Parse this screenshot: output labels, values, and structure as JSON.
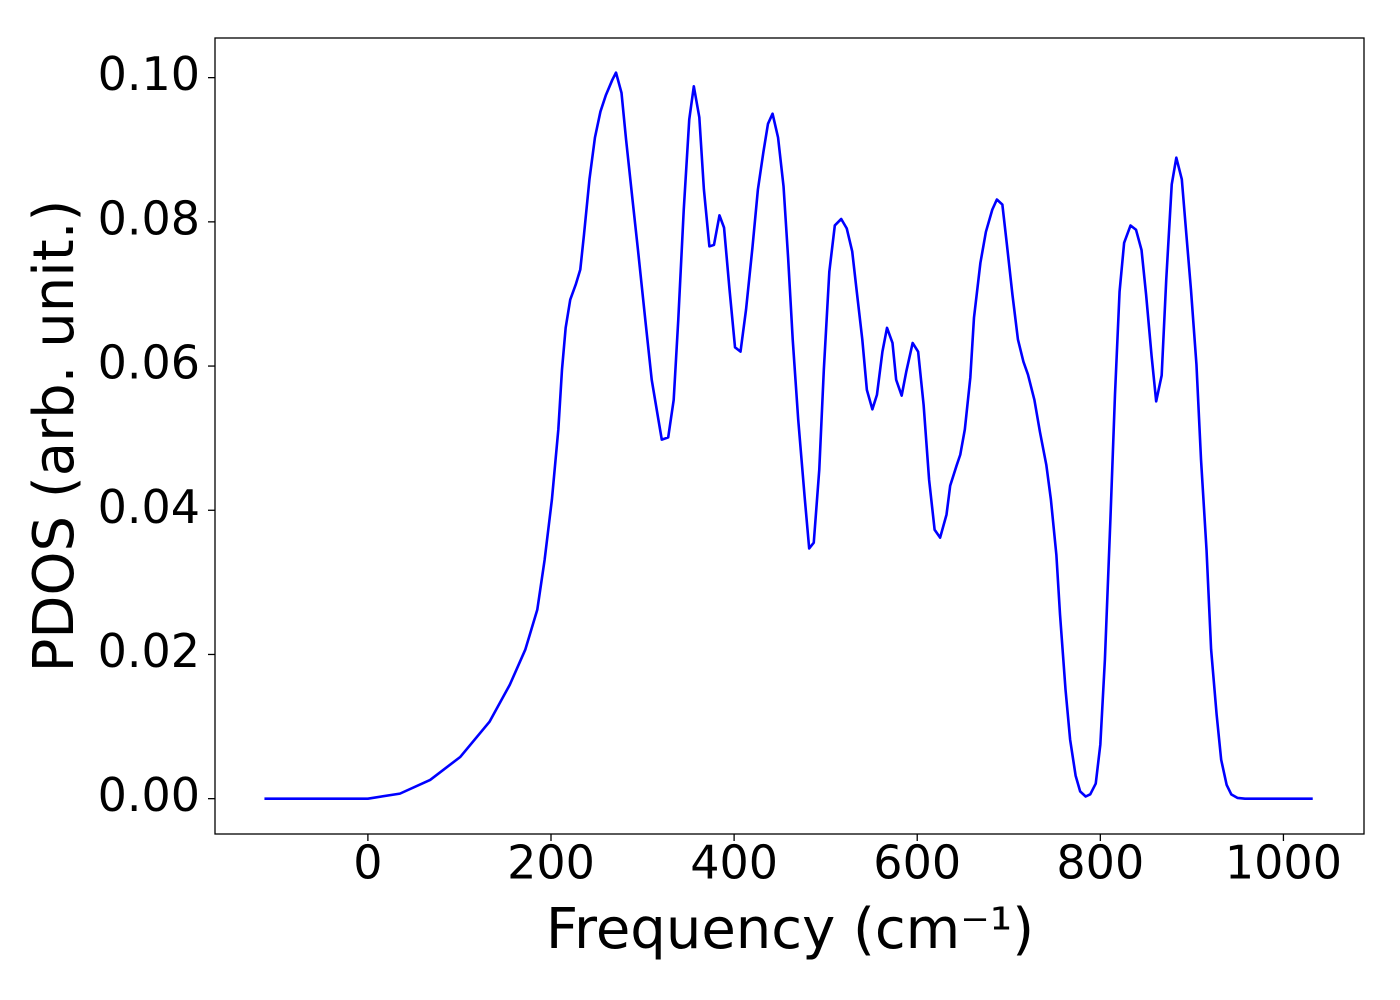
{
  "chart_data": {
    "type": "line",
    "xlabel": "Frequency (cm⁻¹)",
    "ylabel": "PDOS (arb. unit.)",
    "xlim": [
      -167,
      1088
    ],
    "ylim": [
      -0.0049,
      0.1055
    ],
    "xticks": [
      0,
      200,
      400,
      600,
      800,
      1000
    ],
    "yticks": [
      {
        "value": 0,
        "label": "0.00"
      },
      {
        "value": 0.02,
        "label": "0.02"
      },
      {
        "value": 0.04,
        "label": "0.04"
      },
      {
        "value": 0.06,
        "label": "0.06"
      },
      {
        "value": 0.08,
        "label": "0.08"
      },
      {
        "value": 0.1,
        "label": "0.10"
      }
    ],
    "grid": false,
    "x": [
      -113,
      0,
      35,
      68,
      101,
      133,
      155,
      172,
      185,
      193,
      201,
      208,
      212,
      216,
      221,
      227,
      232,
      236,
      242,
      248,
      254,
      260,
      267,
      271,
      277,
      282,
      289,
      295,
      303,
      310,
      317,
      321,
      328,
      334,
      339,
      345,
      351,
      356,
      362,
      367,
      373,
      378,
      384,
      389,
      395,
      401,
      407,
      413,
      420,
      426,
      432,
      437,
      442,
      448,
      454,
      459,
      464,
      470,
      477,
      482,
      487,
      493,
      498,
      504,
      510,
      517,
      523,
      529,
      534,
      540,
      545,
      551,
      556,
      562,
      567,
      573,
      577,
      583,
      588,
      595,
      601,
      607,
      613,
      619,
      625,
      632,
      636,
      643,
      647,
      652,
      658,
      662,
      669,
      675,
      682,
      687,
      693,
      698,
      704,
      710,
      716,
      721,
      728,
      734,
      741,
      746,
      752,
      756,
      762,
      767,
      773,
      778,
      784,
      789,
      795,
      800,
      805,
      811,
      816,
      821,
      826,
      833,
      839,
      845,
      850,
      856,
      861,
      867,
      872,
      878,
      883,
      889,
      894,
      899,
      905,
      910,
      916,
      921,
      927,
      932,
      938,
      943,
      950,
      958,
      1032
    ],
    "series": [
      {
        "color": "#0000ff",
        "values": [
          0,
          0,
          0.0007,
          0.0026,
          0.0058,
          0.0107,
          0.0158,
          0.0207,
          0.0262,
          0.0331,
          0.0415,
          0.0512,
          0.0595,
          0.0653,
          0.0692,
          0.0713,
          0.0734,
          0.0782,
          0.0859,
          0.0917,
          0.0953,
          0.0976,
          0.0997,
          0.1007,
          0.0979,
          0.0914,
          0.0831,
          0.0761,
          0.0664,
          0.0581,
          0.0528,
          0.0498,
          0.0501,
          0.0553,
          0.0664,
          0.0817,
          0.0942,
          0.0988,
          0.0945,
          0.0845,
          0.0766,
          0.0768,
          0.0809,
          0.0792,
          0.0706,
          0.0626,
          0.062,
          0.0678,
          0.0764,
          0.0845,
          0.0897,
          0.0936,
          0.095,
          0.0917,
          0.0849,
          0.075,
          0.0637,
          0.0526,
          0.0419,
          0.0347,
          0.0355,
          0.0456,
          0.0595,
          0.0731,
          0.0795,
          0.0804,
          0.0791,
          0.0759,
          0.0703,
          0.0637,
          0.0567,
          0.054,
          0.056,
          0.062,
          0.0653,
          0.0632,
          0.0581,
          0.0559,
          0.0592,
          0.0632,
          0.062,
          0.0546,
          0.0442,
          0.0373,
          0.0362,
          0.0394,
          0.0434,
          0.0462,
          0.0477,
          0.0512,
          0.0584,
          0.0667,
          0.0743,
          0.0786,
          0.0817,
          0.0831,
          0.0824,
          0.0768,
          0.0699,
          0.0637,
          0.0606,
          0.0588,
          0.0553,
          0.0509,
          0.0463,
          0.0415,
          0.0338,
          0.0255,
          0.0151,
          0.0082,
          0.0032,
          0.001,
          0.0003,
          0.0006,
          0.0021,
          0.0075,
          0.0193,
          0.0387,
          0.056,
          0.0703,
          0.0771,
          0.0795,
          0.0789,
          0.0761,
          0.0699,
          0.0614,
          0.0551,
          0.0587,
          0.072,
          0.0852,
          0.0889,
          0.0859,
          0.0782,
          0.0706,
          0.0602,
          0.047,
          0.0345,
          0.0207,
          0.0117,
          0.0054,
          0.0019,
          0.0006,
          0.0001,
          0,
          0
        ]
      }
    ]
  }
}
